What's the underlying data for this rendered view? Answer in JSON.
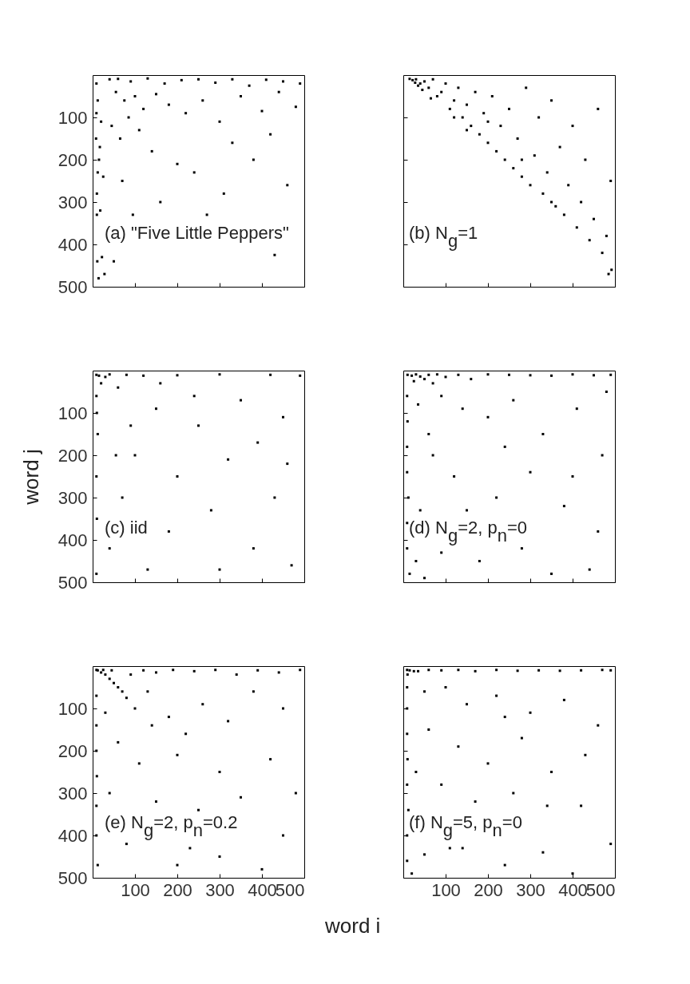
{
  "chart_data": [
    {
      "type": "scatter",
      "xlim": [
        0,
        500
      ],
      "ylim": [
        500,
        0
      ],
      "xticks": [
        100,
        200,
        300,
        400,
        500
      ],
      "yticks": [
        100,
        200,
        300,
        400,
        500
      ],
      "tick_labels": "y",
      "marker": "square",
      "annotations": [
        "(a) \"Five Little Peppers\""
      ],
      "series": [
        {
          "color": "#000000",
          "x": [
            9,
            12,
            20,
            8,
            15,
            25,
            10,
            18,
            10,
            22,
            11,
            14,
            28,
            9,
            17,
            12,
            40,
            60,
            90,
            130,
            170,
            210,
            250,
            290,
            330,
            370,
            410,
            450,
            490,
            55,
            75,
            100,
            120,
            150,
            45,
            65,
            85,
            110,
            180,
            220,
            260,
            300,
            350,
            400,
            440,
            480,
            140,
            200,
            330,
            420,
            70,
            240,
            380,
            460,
            160,
            95,
            310,
            50,
            270,
            430
          ],
          "values": [
            20,
            60,
            110,
            150,
            200,
            240,
            280,
            320,
            330,
            430,
            440,
            480,
            470,
            90,
            170,
            230,
            10,
            9,
            15,
            8,
            20,
            12,
            10,
            18,
            10,
            25,
            11,
            15,
            20,
            40,
            60,
            50,
            80,
            45,
            120,
            150,
            100,
            130,
            70,
            90,
            60,
            110,
            50,
            85,
            40,
            75,
            180,
            210,
            160,
            140,
            250,
            230,
            200,
            260,
            300,
            330,
            280,
            440,
            330,
            425
          ]
        }
      ]
    },
    {
      "type": "scatter",
      "xlim": [
        0,
        500
      ],
      "ylim": [
        500,
        0
      ],
      "xticks": [
        100,
        200,
        300,
        400,
        500
      ],
      "yticks": [
        100,
        200,
        300,
        400,
        500
      ],
      "tick_labels": false,
      "marker": "square",
      "annotations": [
        "(b) N$_{g}$=1"
      ],
      "series": [
        {
          "color": "#000000",
          "x": [
            15,
            22,
            30,
            28,
            40,
            50,
            60,
            45,
            70,
            80,
            90,
            100,
            110,
            120,
            130,
            140,
            150,
            160,
            170,
            180,
            190,
            200,
            210,
            220,
            230,
            240,
            250,
            260,
            270,
            280,
            290,
            300,
            310,
            320,
            330,
            340,
            350,
            360,
            370,
            380,
            390,
            400,
            410,
            420,
            430,
            440,
            450,
            460,
            470,
            480,
            490,
            492,
            350,
            280,
            200,
            150,
            120,
            65,
            35,
            485
          ],
          "values": [
            9,
            12,
            10,
            18,
            20,
            15,
            30,
            35,
            10,
            50,
            40,
            20,
            80,
            60,
            30,
            100,
            70,
            120,
            40,
            140,
            90,
            160,
            50,
            180,
            120,
            200,
            80,
            220,
            150,
            240,
            30,
            260,
            190,
            100,
            280,
            230,
            60,
            310,
            170,
            330,
            260,
            120,
            360,
            300,
            200,
            390,
            340,
            80,
            420,
            380,
            250,
            460,
            300,
            200,
            110,
            130,
            100,
            55,
            25,
            470
          ]
        }
      ]
    },
    {
      "type": "scatter",
      "xlim": [
        0,
        500
      ],
      "ylim": [
        500,
        0
      ],
      "xticks": [
        100,
        200,
        300,
        400,
        500
      ],
      "yticks": [
        100,
        200,
        300,
        400,
        500
      ],
      "tick_labels": "y",
      "marker": "square",
      "ylabel": "word j",
      "annotations": [
        "(c) iid"
      ],
      "series": [
        {
          "color": "#000000",
          "x": [
            9,
            15,
            40,
            80,
            120,
            200,
            300,
            420,
            490,
            9,
            12,
            9,
            10,
            9,
            60,
            150,
            250,
            350,
            450,
            100,
            200,
            320,
            430,
            70,
            180,
            280,
            380,
            470,
            130,
            40,
            240,
            390,
            20,
            30,
            10,
            55,
            300,
            160,
            460,
            90
          ],
          "values": [
            10,
            12,
            9,
            10,
            12,
            11,
            9,
            10,
            12,
            60,
            150,
            250,
            350,
            480,
            40,
            90,
            130,
            70,
            110,
            200,
            250,
            210,
            300,
            300,
            380,
            330,
            420,
            460,
            470,
            420,
            60,
            170,
            30,
            15,
            100,
            200,
            470,
            30,
            220,
            130
          ]
        }
      ]
    },
    {
      "type": "scatter",
      "xlim": [
        0,
        500
      ],
      "ylim": [
        500,
        0
      ],
      "xticks": [
        100,
        200,
        300,
        400,
        500
      ],
      "yticks": [
        100,
        200,
        300,
        400,
        500
      ],
      "tick_labels": false,
      "marker": "square",
      "annotations": [
        "(d) N$_{g}$=2, p$_{n}$=0"
      ],
      "series": [
        {
          "color": "#000000",
          "x": [
            10,
            20,
            30,
            40,
            50,
            25,
            60,
            70,
            80,
            100,
            130,
            160,
            200,
            250,
            300,
            350,
            400,
            450,
            490,
            9,
            10,
            9,
            9,
            12,
            9,
            9,
            15,
            30,
            50,
            90,
            140,
            60,
            200,
            260,
            330,
            410,
            470,
            120,
            220,
            300,
            380,
            460,
            90,
            180,
            280,
            350,
            440,
            40,
            150,
            240,
            400,
            35,
            70,
            480
          ],
          "values": [
            10,
            12,
            9,
            14,
            20,
            25,
            10,
            30,
            9,
            15,
            10,
            20,
            9,
            10,
            11,
            12,
            9,
            11,
            10,
            60,
            120,
            180,
            240,
            300,
            360,
            420,
            480,
            450,
            490,
            60,
            90,
            150,
            110,
            70,
            150,
            90,
            200,
            250,
            300,
            240,
            320,
            380,
            430,
            450,
            420,
            480,
            470,
            330,
            330,
            180,
            250,
            80,
            200,
            50
          ]
        }
      ]
    },
    {
      "type": "scatter",
      "xlim": [
        0,
        500
      ],
      "ylim": [
        500,
        0
      ],
      "xticks": [
        100,
        200,
        300,
        400,
        500
      ],
      "yticks": [
        100,
        200,
        300,
        400,
        500
      ],
      "marker": "square",
      "xlabel": "word i",
      "annotations": [
        "(e) N$_{g}$=2, p$_{n}$=0.2"
      ],
      "series": [
        {
          "color": "#000000",
          "x": [
            9,
            12,
            20,
            30,
            40,
            50,
            60,
            70,
            80,
            25,
            45,
            90,
            120,
            150,
            190,
            240,
            290,
            340,
            390,
            440,
            490,
            9,
            9,
            9,
            10,
            9,
            9,
            12,
            100,
            140,
            180,
            220,
            260,
            320,
            380,
            450,
            60,
            110,
            200,
            300,
            420,
            480,
            40,
            150,
            250,
            350,
            450,
            80,
            200,
            300,
            400,
            130,
            30,
            230
          ],
          "values": [
            9,
            10,
            15,
            20,
            30,
            40,
            50,
            60,
            75,
            9,
            10,
            20,
            10,
            15,
            9,
            12,
            9,
            20,
            10,
            15,
            9,
            70,
            140,
            200,
            260,
            330,
            400,
            470,
            100,
            140,
            120,
            160,
            90,
            130,
            60,
            100,
            180,
            230,
            210,
            250,
            220,
            300,
            300,
            320,
            340,
            310,
            400,
            420,
            470,
            450,
            480,
            60,
            110,
            430
          ]
        }
      ]
    },
    {
      "type": "scatter",
      "xlim": [
        0,
        500
      ],
      "ylim": [
        500,
        0
      ],
      "xticks": [
        100,
        200,
        300,
        400,
        500
      ],
      "yticks": [
        100,
        200,
        300,
        400,
        500
      ],
      "tick_labels": "x",
      "marker": "square",
      "annotations": [
        "(f) N$_{g}$=5, p$_{n}$=0"
      ],
      "series": [
        {
          "color": "#000000",
          "x": [
            9,
            15,
            25,
            35,
            10,
            60,
            90,
            130,
            170,
            220,
            270,
            320,
            370,
            420,
            470,
            490,
            9,
            9,
            9,
            10,
            9,
            12,
            9,
            9,
            20,
            50,
            100,
            150,
            220,
            300,
            380,
            460,
            60,
            130,
            200,
            280,
            350,
            430,
            90,
            170,
            260,
            340,
            420,
            490,
            50,
            140,
            240,
            330,
            400,
            30,
            240,
            110
          ],
          "values": [
            9,
            10,
            12,
            12,
            20,
            9,
            10,
            9,
            12,
            9,
            11,
            10,
            11,
            10,
            9,
            10,
            50,
            100,
            160,
            220,
            280,
            340,
            400,
            460,
            490,
            60,
            50,
            90,
            70,
            110,
            80,
            140,
            150,
            190,
            230,
            170,
            250,
            210,
            280,
            320,
            300,
            330,
            330,
            420,
            445,
            430,
            470,
            440,
            490,
            250,
            120,
            430
          ]
        }
      ]
    }
  ]
}
